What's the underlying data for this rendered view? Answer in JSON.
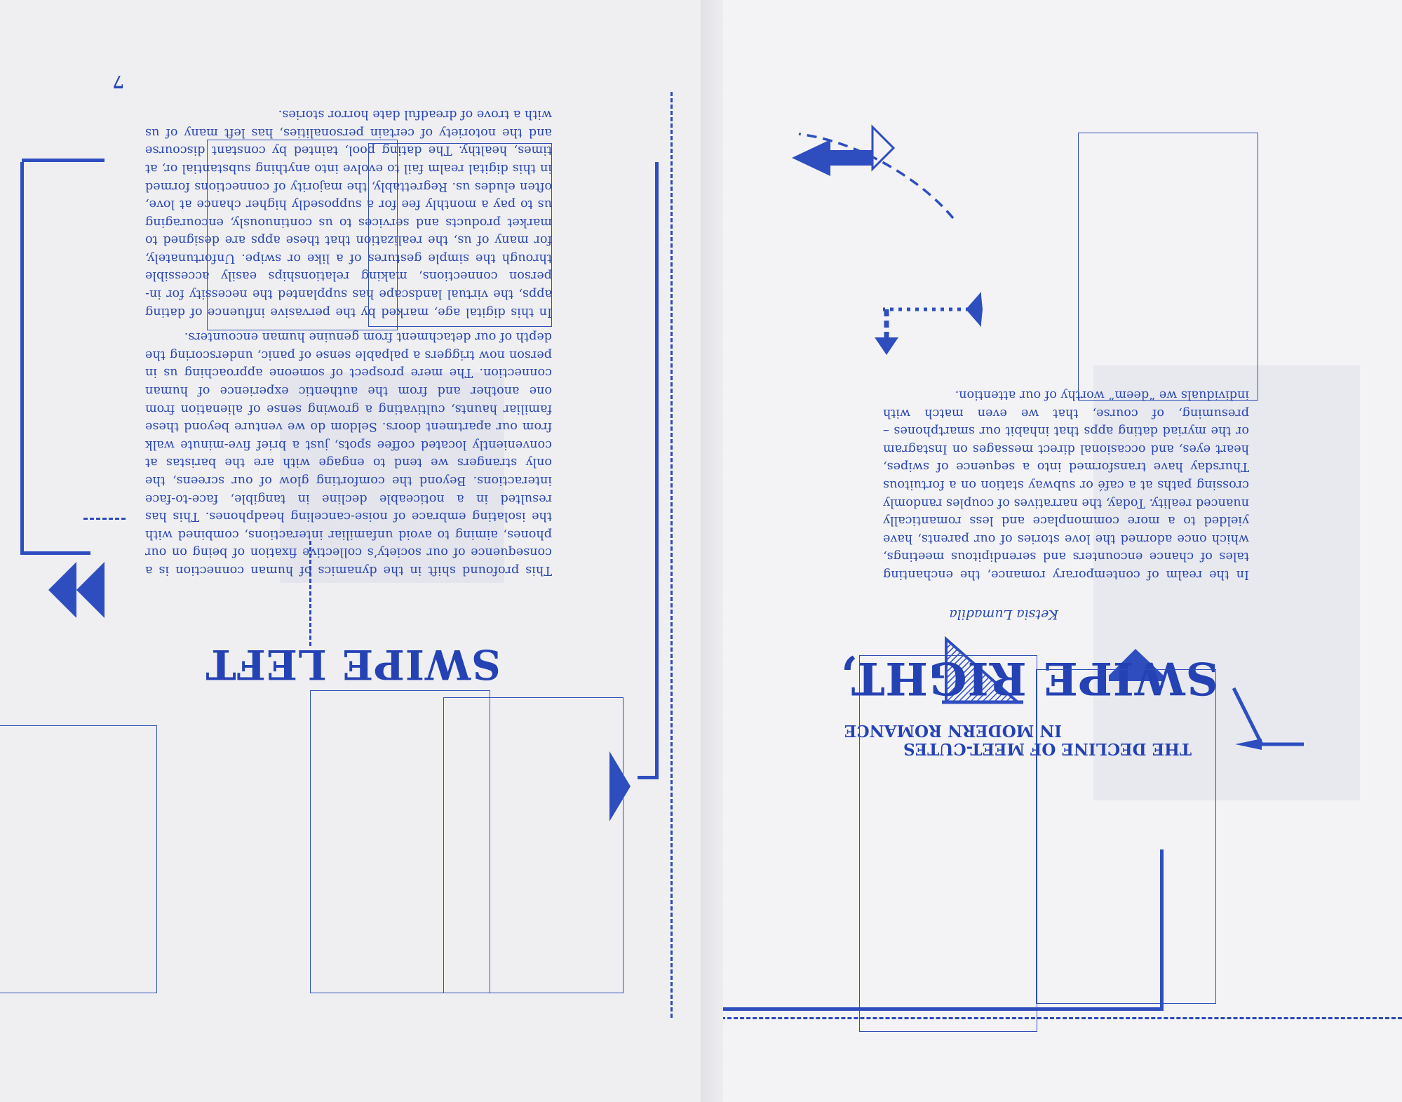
{
  "left_page": {
    "headline": "SWIPE LEFT",
    "page_number": "7",
    "paragraphs": [
      "This profound shift in the dynamics of human connection is a consequence of our society’s collective fixation of being on our phones, aiming to avoid unfamiliar interactions, combined with the isolating embrace of noise-canceling headphones. This has resulted in a noticeable decline in tangible, face-to-face interactions. Beyond the comforting glow of our screens, the only strangers we tend to engage with are the baristas at conveniently located coffee spots, just a brief five-minute walk from our apartment doors. Seldom do we venture beyond these familiar haunts, cultivating a growing sense of alienation from one another and from the authentic experience of human connection. The mere prospect of someone approaching us in person now triggers a palpable sense of panic, underscoring the depth of our detachment from genuine human encounters.",
      "In this digital age, marked by the pervasive influence of dating apps, the virtual landscape has supplanted the necessity for in-person connections, making relationships easily accessible through the simple gestures of a like or swipe. Unfortunately, for many of us, the realization that these apps are designed to market products and services to us continuously, encouraging us to pay a monthly fee for a supposedly higher chance at love, often eludes us. Regrettably, the majority of connections formed in this digital realm fail to evolve into anything substantial or, at times, healthy. The dating pool, tainted by constant discourse and the notoriety of certain personalities, has left many of us with a trove of dreadful date horror stories."
    ]
  },
  "right_page": {
    "headline": "SWIPE RIGHT,",
    "subheadline_line1": "THE DECLINE OF MEET-CUTES",
    "subheadline_line2": "IN MODERN ROMANCE",
    "author": "Ketsia Lumadila",
    "paragraphs": [
      "In the realm of contemporary romance, the enchanting tales of chance encounters and serendipitous meetings, which once adorned the love stories of our parents, have yielded to a more commonplace and less romantically nuanced reality. Today, the narratives of couples randomly crossing paths at a café or subway station on a fortuitous Thursday have transformed into a sequence of swipes, heart eyes, and occasional direct messages on Instagram or the myriad dating apps that inhabit our smartphones – presuming, of course, that we even match with individuals we “deem” worthy of our attention."
    ]
  },
  "colors": {
    "ink": "#2747b6",
    "paper": "#f4f4f6"
  },
  "icons": [
    "double-left-arrow-icon",
    "right-triangle-arrow-icon",
    "up-arrow-icon",
    "left-arrow-icon",
    "curved-dashed-arrow-icon",
    "corner-arrow-icon"
  ]
}
